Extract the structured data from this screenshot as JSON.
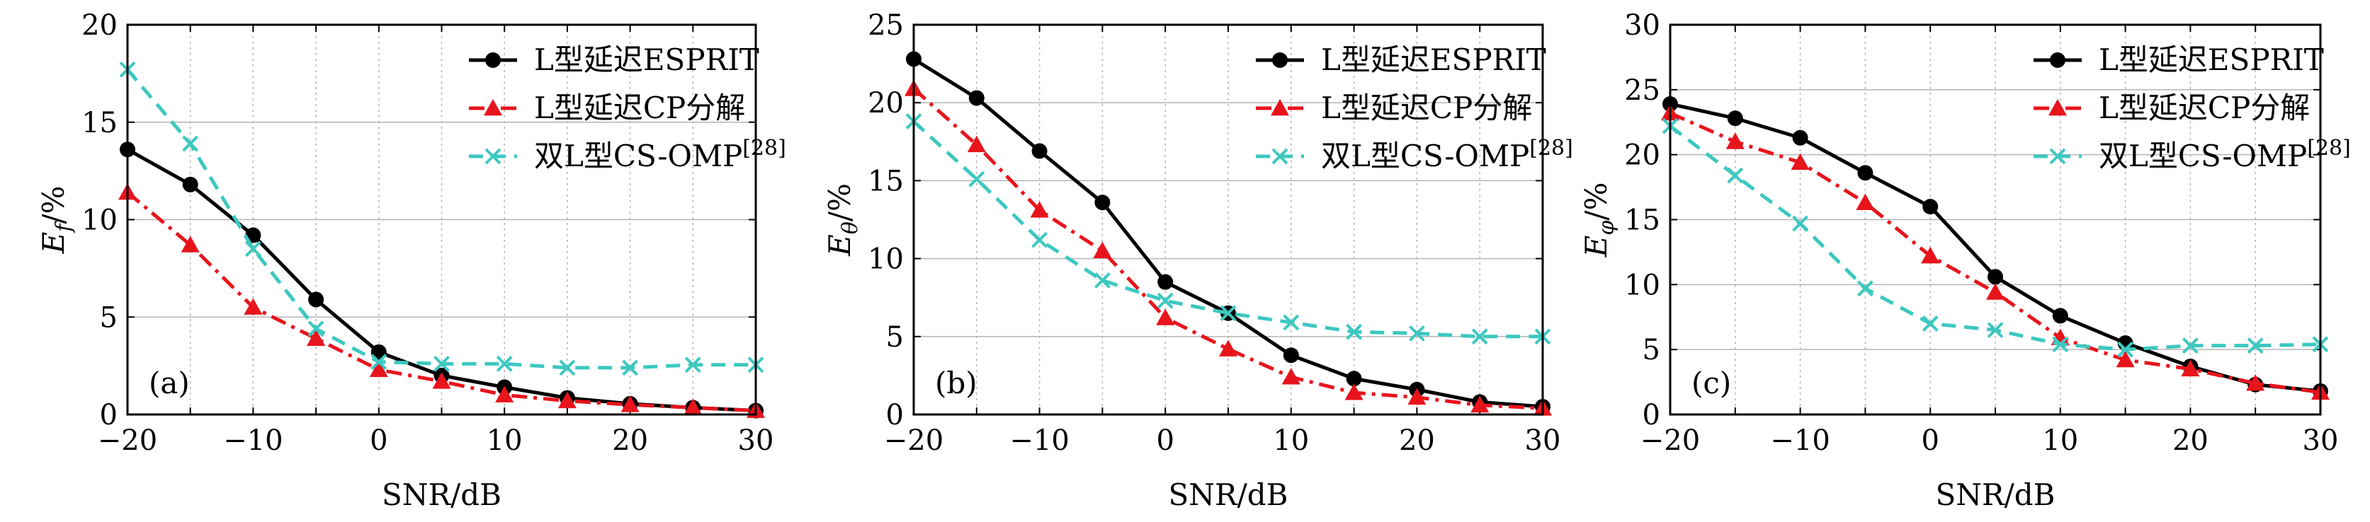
{
  "colors": {
    "esprit": "#000000",
    "cp": "#e8141c",
    "omp": "#3cc8c0",
    "grid": "#b4b4b4"
  },
  "legend": [
    "L型延迟ESPRIT",
    "L型延迟CP分解",
    "双L型CS-OMP[28]"
  ],
  "chart_data": [
    {
      "type": "line",
      "panel_label": "(a)",
      "xlabel": "SNR/dB",
      "ylabel_main": "E",
      "ylabel_sub": "f",
      "ylabel_unit": "/%",
      "xlim": [
        -20,
        30
      ],
      "ylim": [
        0,
        20
      ],
      "xticks": [
        -20,
        -10,
        0,
        10,
        20,
        30
      ],
      "xtick_labels": [
        "−20",
        "−10",
        "0",
        "10",
        "20",
        "30"
      ],
      "yticks": [
        0,
        5,
        10,
        15,
        20
      ],
      "grid": true,
      "legend_position": "top-right",
      "x": [
        -20,
        -15,
        -10,
        -5,
        0,
        5,
        10,
        15,
        20,
        25,
        30
      ],
      "series": [
        {
          "name": "L型延迟ESPRIT",
          "marker": "circle",
          "line": "solid",
          "values": [
            13.6,
            11.8,
            9.2,
            5.9,
            3.2,
            2.0,
            1.4,
            0.85,
            0.55,
            0.35,
            0.2
          ]
        },
        {
          "name": "L型延迟CP分解",
          "marker": "triangle",
          "line": "dashdot",
          "values": [
            11.4,
            8.7,
            5.5,
            3.9,
            2.3,
            1.7,
            1.0,
            0.7,
            0.5,
            0.35,
            0.2
          ]
        },
        {
          "name": "双L型CS-OMP[28]",
          "marker": "x",
          "line": "dashed",
          "values": [
            17.7,
            13.9,
            8.5,
            4.4,
            2.7,
            2.6,
            2.6,
            2.4,
            2.4,
            2.55,
            2.55
          ]
        }
      ]
    },
    {
      "type": "line",
      "panel_label": "(b)",
      "xlabel": "SNR/dB",
      "ylabel_main": "E",
      "ylabel_sub": "θ",
      "ylabel_unit": "/%",
      "xlim": [
        -20,
        30
      ],
      "ylim": [
        0,
        25
      ],
      "xticks": [
        -20,
        -10,
        0,
        10,
        20,
        30
      ],
      "xtick_labels": [
        "−20",
        "−10",
        "0",
        "10",
        "20",
        "30"
      ],
      "yticks": [
        0,
        5,
        10,
        15,
        20,
        25
      ],
      "grid": true,
      "legend_position": "top-right",
      "x": [
        -20,
        -15,
        -10,
        -5,
        0,
        5,
        10,
        15,
        20,
        25,
        30
      ],
      "series": [
        {
          "name": "L型延迟ESPRIT",
          "marker": "circle",
          "line": "solid",
          "values": [
            22.8,
            20.3,
            16.9,
            13.6,
            8.5,
            6.5,
            3.8,
            2.3,
            1.6,
            0.8,
            0.5
          ]
        },
        {
          "name": "L型延迟CP分解",
          "marker": "triangle",
          "line": "dashdot",
          "values": [
            20.9,
            17.3,
            13.1,
            10.5,
            6.2,
            4.2,
            2.4,
            1.4,
            1.1,
            0.6,
            0.4
          ]
        },
        {
          "name": "双L型CS-OMP[28]",
          "marker": "x",
          "line": "dashed",
          "values": [
            18.8,
            15.1,
            11.2,
            8.6,
            7.3,
            6.5,
            5.9,
            5.3,
            5.2,
            5.0,
            5.0
          ]
        }
      ]
    },
    {
      "type": "line",
      "panel_label": "(c)",
      "xlabel": "SNR/dB",
      "ylabel_main": "E",
      "ylabel_sub": "φ",
      "ylabel_unit": "/%",
      "xlim": [
        -20,
        30
      ],
      "ylim": [
        0,
        30
      ],
      "xticks": [
        -20,
        -10,
        0,
        10,
        20,
        30
      ],
      "xtick_labels": [
        "−20",
        "−10",
        "0",
        "10",
        "20",
        "30"
      ],
      "yticks": [
        0,
        5,
        10,
        15,
        20,
        25,
        30
      ],
      "grid": true,
      "legend_position": "top-right",
      "x": [
        -20,
        -15,
        -10,
        -5,
        0,
        5,
        10,
        15,
        20,
        25,
        30
      ],
      "series": [
        {
          "name": "L型延迟ESPRIT",
          "marker": "circle",
          "line": "solid",
          "values": [
            23.9,
            22.8,
            21.3,
            18.6,
            16.0,
            10.6,
            7.6,
            5.5,
            3.7,
            2.3,
            1.8
          ]
        },
        {
          "name": "L型延迟CP分解",
          "marker": "triangle",
          "line": "dashdot",
          "values": [
            23.2,
            21.0,
            19.4,
            16.3,
            12.2,
            9.4,
            5.9,
            4.2,
            3.5,
            2.4,
            1.7
          ]
        },
        {
          "name": "双L型CS-OMP[28]",
          "marker": "x",
          "line": "dashed",
          "values": [
            22.2,
            18.4,
            14.7,
            9.7,
            7.0,
            6.5,
            5.4,
            5.0,
            5.3,
            5.3,
            5.4
          ]
        }
      ]
    }
  ]
}
